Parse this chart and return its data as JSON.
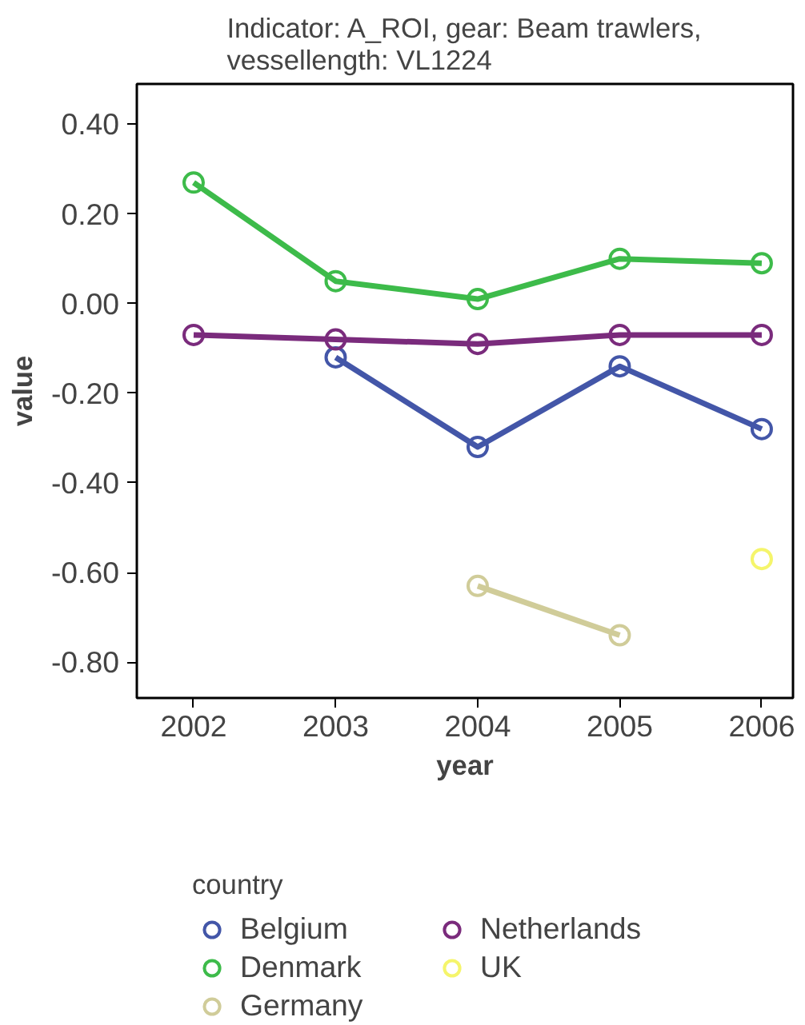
{
  "chart_data": {
    "type": "line",
    "title": "Indicator: A_ROI, gear: Beam trawlers,\nvessellength: VL1224",
    "xlabel": "year",
    "ylabel": "value",
    "legend_title": "country",
    "x": [
      2002,
      2003,
      2004,
      2005,
      2006
    ],
    "xlim": [
      2001.6,
      2006.22
    ],
    "xticks": [
      2002,
      2003,
      2004,
      2005,
      2006
    ],
    "ylim": [
      -0.88,
      0.49
    ],
    "yticks": [
      {
        "value": 0.4,
        "label": "0.40"
      },
      {
        "value": 0.2,
        "label": "0.20"
      },
      {
        "value": 0,
        "label": "0.00"
      },
      {
        "value": -0.2,
        "label": "-0.20"
      },
      {
        "value": -0.4,
        "label": "-0.40"
      },
      {
        "value": -0.6,
        "label": "-0.60"
      },
      {
        "value": -0.8,
        "label": "-0.80"
      }
    ],
    "marker": "circle",
    "line_style": "solid",
    "grid": false,
    "legend": "bottom",
    "series": [
      {
        "name": "Belgium",
        "color": "#4356a8",
        "values": [
          null,
          -0.12,
          -0.32,
          -0.14,
          -0.28
        ]
      },
      {
        "name": "Denmark",
        "color": "#3dbb4a",
        "values": [
          0.27,
          0.05,
          0.01,
          0.1,
          0.09
        ]
      },
      {
        "name": "Germany",
        "color": "#d0cc99",
        "values": [
          null,
          null,
          -0.63,
          -0.74,
          null
        ]
      },
      {
        "name": "Netherlands",
        "color": "#7a2b7c",
        "values": [
          -0.07,
          -0.08,
          -0.09,
          -0.07,
          -0.07
        ]
      },
      {
        "name": "UK",
        "color": "#f5f56b",
        "values": [
          null,
          null,
          null,
          null,
          -0.57
        ]
      }
    ]
  }
}
